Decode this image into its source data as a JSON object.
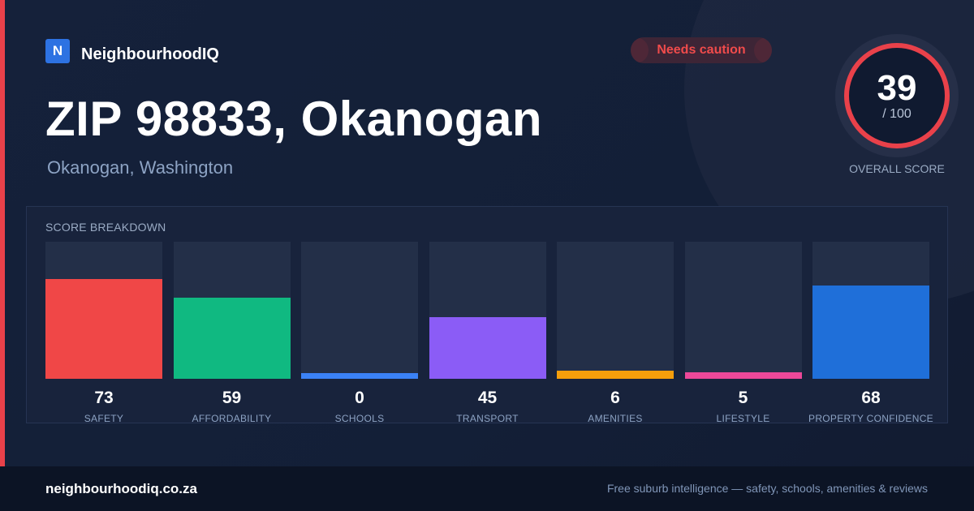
{
  "brand": {
    "logo_letter": "N",
    "name": "NeighbourhoodIQ",
    "color": "#2d72e2"
  },
  "badge": {
    "label": "Needs caution",
    "color": "#f04b4b"
  },
  "location": {
    "title": "ZIP 98833, Okanogan",
    "subtitle": "Okanogan, Washington"
  },
  "overall": {
    "score": "39",
    "max": "/ 100",
    "score_fraction": 0.39,
    "label": "OVERALL SCORE",
    "ring_color": "#e9414a"
  },
  "accent_color": "#e9414a",
  "breakdown": {
    "title": "SCORE BREAKDOWN",
    "items": [
      {
        "label": "SAFETY",
        "value": "73",
        "score": 73,
        "color": "#f04747"
      },
      {
        "label": "AFFORDABILITY",
        "value": "59",
        "score": 59,
        "color": "#10b981"
      },
      {
        "label": "SCHOOLS",
        "value": "0",
        "score": 0,
        "color": "#3b82f6"
      },
      {
        "label": "TRANSPORT",
        "value": "45",
        "score": 45,
        "color": "#8b5cf6"
      },
      {
        "label": "AMENITIES",
        "value": "6",
        "score": 6,
        "color": "#f59e0b"
      },
      {
        "label": "LIFESTYLE",
        "value": "5",
        "score": 5,
        "color": "#ec4899"
      },
      {
        "label": "PROPERTY CONFIDENCE",
        "value": "68",
        "score": 68,
        "color": "#1f6fd9"
      }
    ]
  },
  "footer": {
    "site": "neighbourhoodiq.co.za",
    "tagline": "Free suburb intelligence — safety, schools, amenities & reviews"
  }
}
